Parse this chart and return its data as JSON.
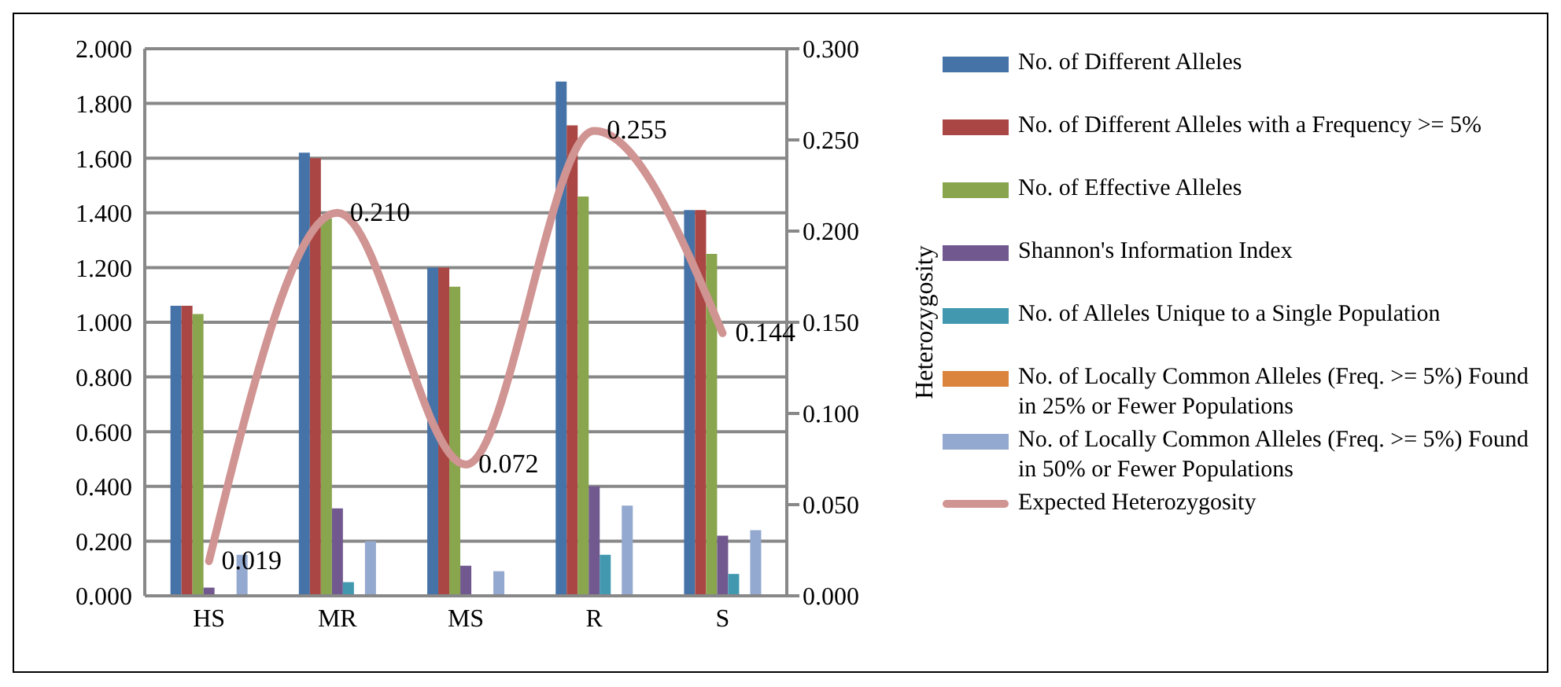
{
  "chart_data": {
    "type": "bar",
    "categories": [
      "HS",
      "MR",
      "MS",
      "R",
      "S"
    ],
    "series": [
      {
        "name": "No. of Different Alleles",
        "color": "#4572a7",
        "values": [
          1.06,
          1.62,
          1.2,
          1.88,
          1.41
        ]
      },
      {
        "name": "No. of Different Alleles with a Frequency >= 5%",
        "color": "#aa4643",
        "values": [
          1.06,
          1.6,
          1.2,
          1.72,
          1.41
        ]
      },
      {
        "name": "No. of Effective Alleles",
        "color": "#89a54e",
        "values": [
          1.03,
          1.38,
          1.13,
          1.46,
          1.25
        ]
      },
      {
        "name": "Shannon's Information Index",
        "color": "#71588f",
        "values": [
          0.03,
          0.32,
          0.11,
          0.4,
          0.22
        ]
      },
      {
        "name": "No. of Alleles Unique to a Single Population",
        "color": "#4198af",
        "values": [
          0,
          0.05,
          0,
          0.15,
          0.08
        ]
      },
      {
        "name": "No. of Locally Common Alleles (Freq. >= 5%) Found in 25% or Fewer Populations",
        "color": "#db843d",
        "values": [
          0,
          0,
          0,
          0,
          0
        ]
      },
      {
        "name": "No. of Locally Common Alleles (Freq. >= 5%) Found in 50% or Fewer Populations",
        "color": "#93a9cf",
        "values": [
          0.15,
          0.2,
          0.09,
          0.33,
          0.24
        ]
      },
      {
        "name": "Expected Heterozygosity",
        "type": "line",
        "axis": "y2",
        "color": "#d09493",
        "values": [
          0.019,
          0.21,
          0.072,
          0.255,
          0.144
        ],
        "value_labels": [
          "0.019",
          "0.210",
          "0.072",
          "0.255",
          "0.144"
        ]
      }
    ],
    "ylim": [
      0,
      2
    ],
    "yticks": [
      {
        "value": 0,
        "label": "0.000"
      },
      {
        "value": 0.2,
        "label": "0.200"
      },
      {
        "value": 0.4,
        "label": "0.400"
      },
      {
        "value": 0.6,
        "label": "0.600"
      },
      {
        "value": 0.8,
        "label": "0.800"
      },
      {
        "value": 1,
        "label": "1.000"
      },
      {
        "value": 1.2,
        "label": "1.200"
      },
      {
        "value": 1.4,
        "label": "1.400"
      },
      {
        "value": 1.6,
        "label": "1.600"
      },
      {
        "value": 1.8,
        "label": "1.800"
      },
      {
        "value": 2,
        "label": "2.000"
      }
    ],
    "y2lim": [
      0,
      0.3
    ],
    "y2ticks": [
      {
        "value": 0,
        "label": "0.000"
      },
      {
        "value": 0.05,
        "label": "0.050"
      },
      {
        "value": 0.1,
        "label": "0.100"
      },
      {
        "value": 0.15,
        "label": "0.150"
      },
      {
        "value": 0.2,
        "label": "0.200"
      },
      {
        "value": 0.25,
        "label": "0.250"
      },
      {
        "value": 0.3,
        "label": "0.300"
      }
    ],
    "y2label": "Heterozygosity",
    "grid": "y",
    "legend": "right"
  }
}
